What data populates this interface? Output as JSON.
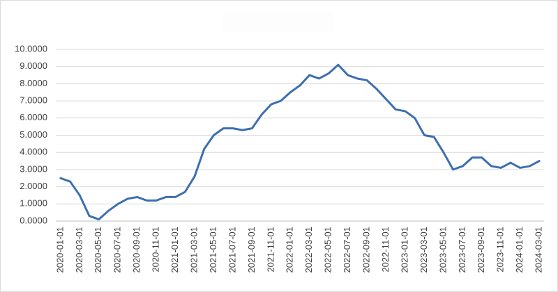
{
  "chart_data": {
    "type": "line",
    "color": "#3d6fb0",
    "grid": true,
    "categories": [
      "2020-01-01",
      null,
      "2020-03-01",
      null,
      "2020-05-01",
      null,
      "2020-07-01",
      null,
      "2020-09-01",
      null,
      "2020-11-01",
      null,
      "2021-01-01",
      null,
      "2021-03-01",
      null,
      "2021-05-01",
      null,
      "2021-07-01",
      null,
      "2021-09-01",
      null,
      "2021-11-01",
      null,
      "2022-01-01",
      null,
      "2022-03-01",
      null,
      "2022-05-01",
      null,
      "2022-07-01",
      null,
      "2022-09-01",
      null,
      "2022-11-01",
      null,
      "2023-01-01",
      null,
      "2023-03-01",
      null,
      "2023-05-01",
      null,
      "2023-07-01",
      null,
      "2023-09-01",
      null,
      "2023-11-01",
      null,
      "2024-01-01",
      null,
      "2024-03-01"
    ],
    "values": [
      2.5,
      2.3,
      1.5,
      0.3,
      0.1,
      0.6,
      1.0,
      1.3,
      1.4,
      1.2,
      1.2,
      1.4,
      1.4,
      1.7,
      2.6,
      4.2,
      5.0,
      5.4,
      5.4,
      5.3,
      5.4,
      6.2,
      6.8,
      7.0,
      7.5,
      7.9,
      8.5,
      8.3,
      8.6,
      9.1,
      8.5,
      8.3,
      8.2,
      7.7,
      7.1,
      6.5,
      6.4,
      6.0,
      5.0,
      4.9,
      4.0,
      3.0,
      3.2,
      3.7,
      3.7,
      3.2,
      3.1,
      3.4,
      3.1,
      3.2,
      3.5
    ],
    "ylim": [
      0,
      10
    ],
    "yticks": [
      {
        "value": 0,
        "label": "0.0000"
      },
      {
        "value": 1,
        "label": "1.0000"
      },
      {
        "value": 2,
        "label": "2.0000"
      },
      {
        "value": 3,
        "label": "3.0000"
      },
      {
        "value": 4,
        "label": "4.0000"
      },
      {
        "value": 5,
        "label": "5.0000"
      },
      {
        "value": 6,
        "label": "6.0000"
      },
      {
        "value": 7,
        "label": "7.0000"
      },
      {
        "value": 8,
        "label": "8.0000"
      },
      {
        "value": 9,
        "label": "9.0000"
      },
      {
        "value": 10,
        "label": "10.0000"
      }
    ]
  }
}
